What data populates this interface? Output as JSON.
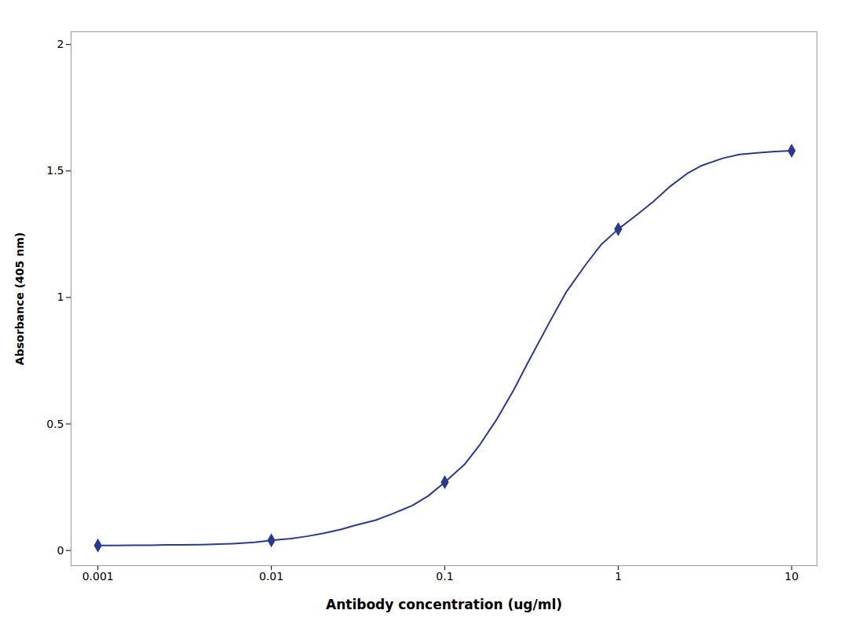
{
  "chart_data": {
    "type": "line",
    "xlabel": "Antibody concentration (ug/ml)",
    "ylabel": "Absorbance (405 nm)",
    "log": "x",
    "grid": false,
    "xlim": [
      0.0007,
      14
    ],
    "xticks": [
      0.001,
      0.01,
      0.1,
      1,
      10
    ],
    "ylim": [
      -0.06,
      2.05
    ],
    "yticks": [
      0,
      0.5,
      1.0,
      1.5,
      2.0
    ],
    "series": [
      {
        "type": "line",
        "line_style": "solid",
        "color": "#2B3A8F",
        "x": [
          0.001,
          0.0013,
          0.0016,
          0.002,
          0.0025,
          0.003,
          0.004,
          0.005,
          0.006,
          0.008,
          0.01,
          0.013,
          0.016,
          0.02,
          0.025,
          0.03,
          0.04,
          0.05,
          0.065,
          0.08,
          0.1,
          0.13,
          0.16,
          0.2,
          0.25,
          0.3,
          0.4,
          0.5,
          0.65,
          0.8,
          1.0,
          1.3,
          1.6,
          2.0,
          2.5,
          3.0,
          4.0,
          5.0,
          6.5,
          8.0,
          10.0
        ],
        "values": [
          0.02,
          0.02,
          0.021,
          0.021,
          0.022,
          0.022,
          0.023,
          0.025,
          0.027,
          0.032,
          0.04,
          0.047,
          0.056,
          0.068,
          0.083,
          0.098,
          0.12,
          0.145,
          0.178,
          0.215,
          0.27,
          0.34,
          0.42,
          0.52,
          0.635,
          0.74,
          0.9,
          1.02,
          1.13,
          1.21,
          1.27,
          1.33,
          1.38,
          1.44,
          1.49,
          1.52,
          1.55,
          1.565,
          1.572,
          1.577,
          1.58
        ]
      },
      {
        "type": "scatter",
        "marker": "diamond",
        "color": "#2B3A8F",
        "x": [
          0.001,
          0.01,
          0.1,
          1,
          10
        ],
        "values": [
          0.02,
          0.04,
          0.27,
          1.27,
          1.58
        ]
      }
    ]
  }
}
